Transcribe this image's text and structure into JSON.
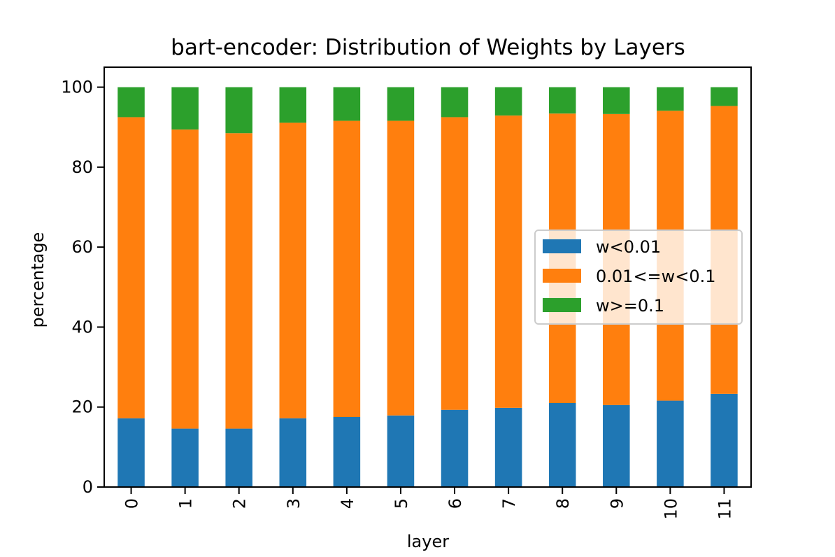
{
  "chart_data": {
    "type": "bar",
    "stacked": true,
    "title": "bart-encoder: Distribution of Weights by Layers",
    "xlabel": "layer",
    "ylabel": "percentage",
    "ylim": [
      0,
      105
    ],
    "yticks": [
      0,
      20,
      40,
      60,
      80,
      100
    ],
    "categories": [
      "0",
      "1",
      "2",
      "3",
      "4",
      "5",
      "6",
      "7",
      "8",
      "9",
      "10",
      "11"
    ],
    "series": [
      {
        "name": "w<0.01",
        "color": "#1f77b4",
        "values": [
          17.2,
          14.6,
          14.6,
          17.2,
          17.5,
          17.9,
          19.3,
          19.8,
          21.0,
          20.5,
          21.6,
          23.3
        ]
      },
      {
        "name": "0.01<=w<0.1",
        "color": "#ff7f0e",
        "values": [
          75.3,
          74.8,
          73.9,
          73.9,
          74.1,
          73.7,
          73.2,
          73.1,
          72.4,
          72.8,
          72.5,
          72.0
        ]
      },
      {
        "name": "w>=0.1",
        "color": "#2ca02c",
        "values": [
          7.5,
          10.6,
          11.5,
          8.9,
          8.4,
          8.4,
          7.5,
          7.1,
          6.6,
          6.7,
          5.9,
          4.7
        ]
      }
    ],
    "legend": {
      "position": "center-right"
    },
    "grid": false
  }
}
